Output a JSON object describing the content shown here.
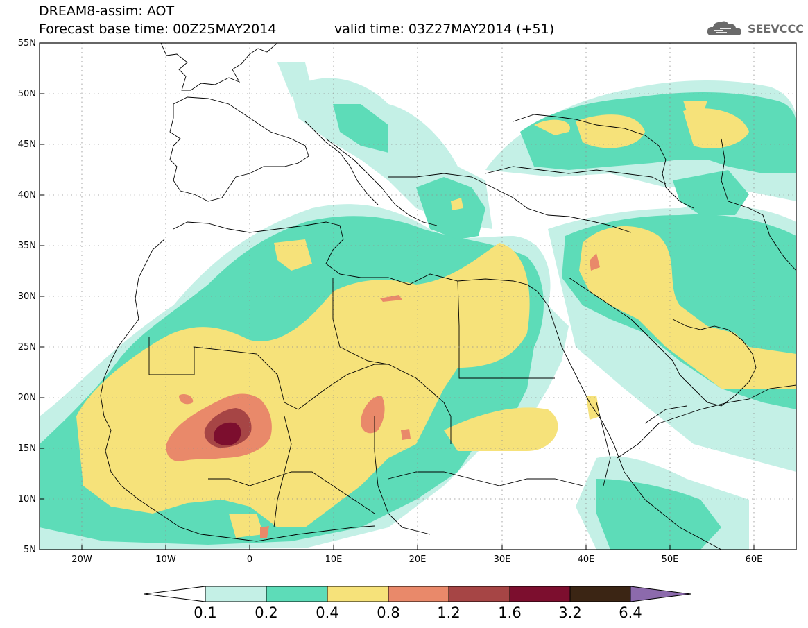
{
  "header": {
    "title_line1": "DREAM8-assim: AOT",
    "title_line2": "Forecast base time: 00Z25MAY2014",
    "valid_time": "valid time: 03Z27MAY2014 (+51)"
  },
  "logo": {
    "text": "SEEVCCC",
    "icon": "cloud-icon",
    "color": "#6a6a6a"
  },
  "map": {
    "extent": {
      "lon": [
        -25,
        65
      ],
      "lat": [
        5,
        55
      ]
    },
    "lat_labels": [
      "55N",
      "50N",
      "45N",
      "40N",
      "35N",
      "30N",
      "25N",
      "20N",
      "15N",
      "10N",
      "5N"
    ],
    "lon_labels": [
      "20W",
      "10W",
      "0",
      "10E",
      "20E",
      "30E",
      "40E",
      "50E",
      "60E"
    ],
    "gridlines": "dotted",
    "coastlines": "on",
    "borders": "on"
  },
  "colorbar": {
    "labels": [
      "0.1",
      "0.2",
      "0.4",
      "0.8",
      "1.2",
      "1.6",
      "3.2",
      "6.4"
    ],
    "colors": [
      "#ffffff",
      "#c4f0e6",
      "#5ddcb8",
      "#f6e27a",
      "#e9896a",
      "#a64545",
      "#7c0e2e",
      "#3b2514",
      "#8c6aac"
    ]
  }
}
